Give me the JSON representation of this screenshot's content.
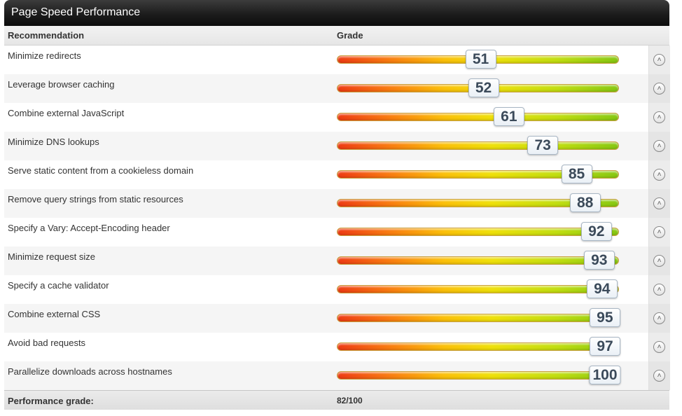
{
  "title": "Page Speed Performance",
  "header": {
    "recommendation": "Recommendation",
    "grade": "Grade"
  },
  "rows": [
    {
      "recommendation": "Minimize redirects",
      "grade": 51
    },
    {
      "recommendation": "Leverage browser caching",
      "grade": 52
    },
    {
      "recommendation": "Combine external JavaScript",
      "grade": 61
    },
    {
      "recommendation": "Minimize DNS lookups",
      "grade": 73
    },
    {
      "recommendation": "Serve static content from a cookieless domain",
      "grade": 85
    },
    {
      "recommendation": "Remove query strings from static resources",
      "grade": 88
    },
    {
      "recommendation": "Specify a Vary: Accept-Encoding header",
      "grade": 92
    },
    {
      "recommendation": "Minimize request size",
      "grade": 93
    },
    {
      "recommendation": "Specify a cache validator",
      "grade": 94
    },
    {
      "recommendation": "Combine external CSS",
      "grade": 95
    },
    {
      "recommendation": "Avoid bad requests",
      "grade": 97
    },
    {
      "recommendation": "Parallelize downloads across hostnames",
      "grade": 100
    }
  ],
  "footer": {
    "label": "Performance grade:",
    "value": "82/100"
  },
  "icons": {
    "expand": "chevron-up-circle-icon"
  },
  "colors": {
    "titlebar": "#1c1c1c",
    "gradient_low": "#ee3b14",
    "gradient_mid": "#fbc009",
    "gradient_high": "#86c812"
  }
}
